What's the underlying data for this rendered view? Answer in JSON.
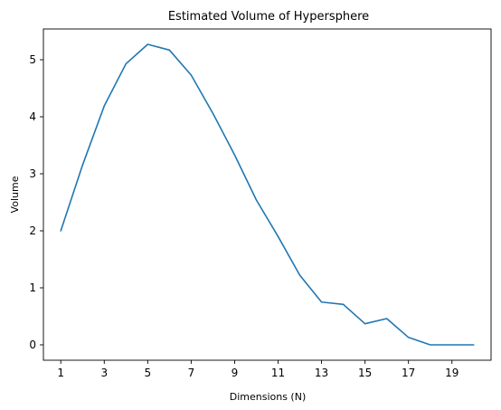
{
  "chart_data": {
    "type": "line",
    "title": "Estimated Volume of Hypersphere",
    "xlabel": "Dimensions (N)",
    "ylabel": "Volume",
    "xlim": [
      0.2,
      20.8
    ],
    "ylim": [
      -0.27,
      5.54
    ],
    "xticks": [
      1,
      3,
      5,
      7,
      9,
      11,
      13,
      15,
      17,
      19
    ],
    "yticks": [
      0,
      1,
      2,
      3,
      4,
      5
    ],
    "grid": false,
    "legend": "none",
    "series": [
      {
        "color": "#1f77b4",
        "x": [
          1,
          2,
          3,
          4,
          5,
          6,
          7,
          8,
          9,
          10,
          11,
          12,
          13,
          14,
          15,
          16,
          17,
          18,
          19,
          20
        ],
        "y": [
          2.0,
          3.15,
          4.19,
          4.93,
          5.27,
          5.17,
          4.73,
          4.06,
          3.33,
          2.54,
          1.9,
          1.22,
          0.75,
          0.71,
          0.37,
          0.46,
          0.13,
          0.0,
          0.0,
          0.0
        ]
      }
    ]
  }
}
